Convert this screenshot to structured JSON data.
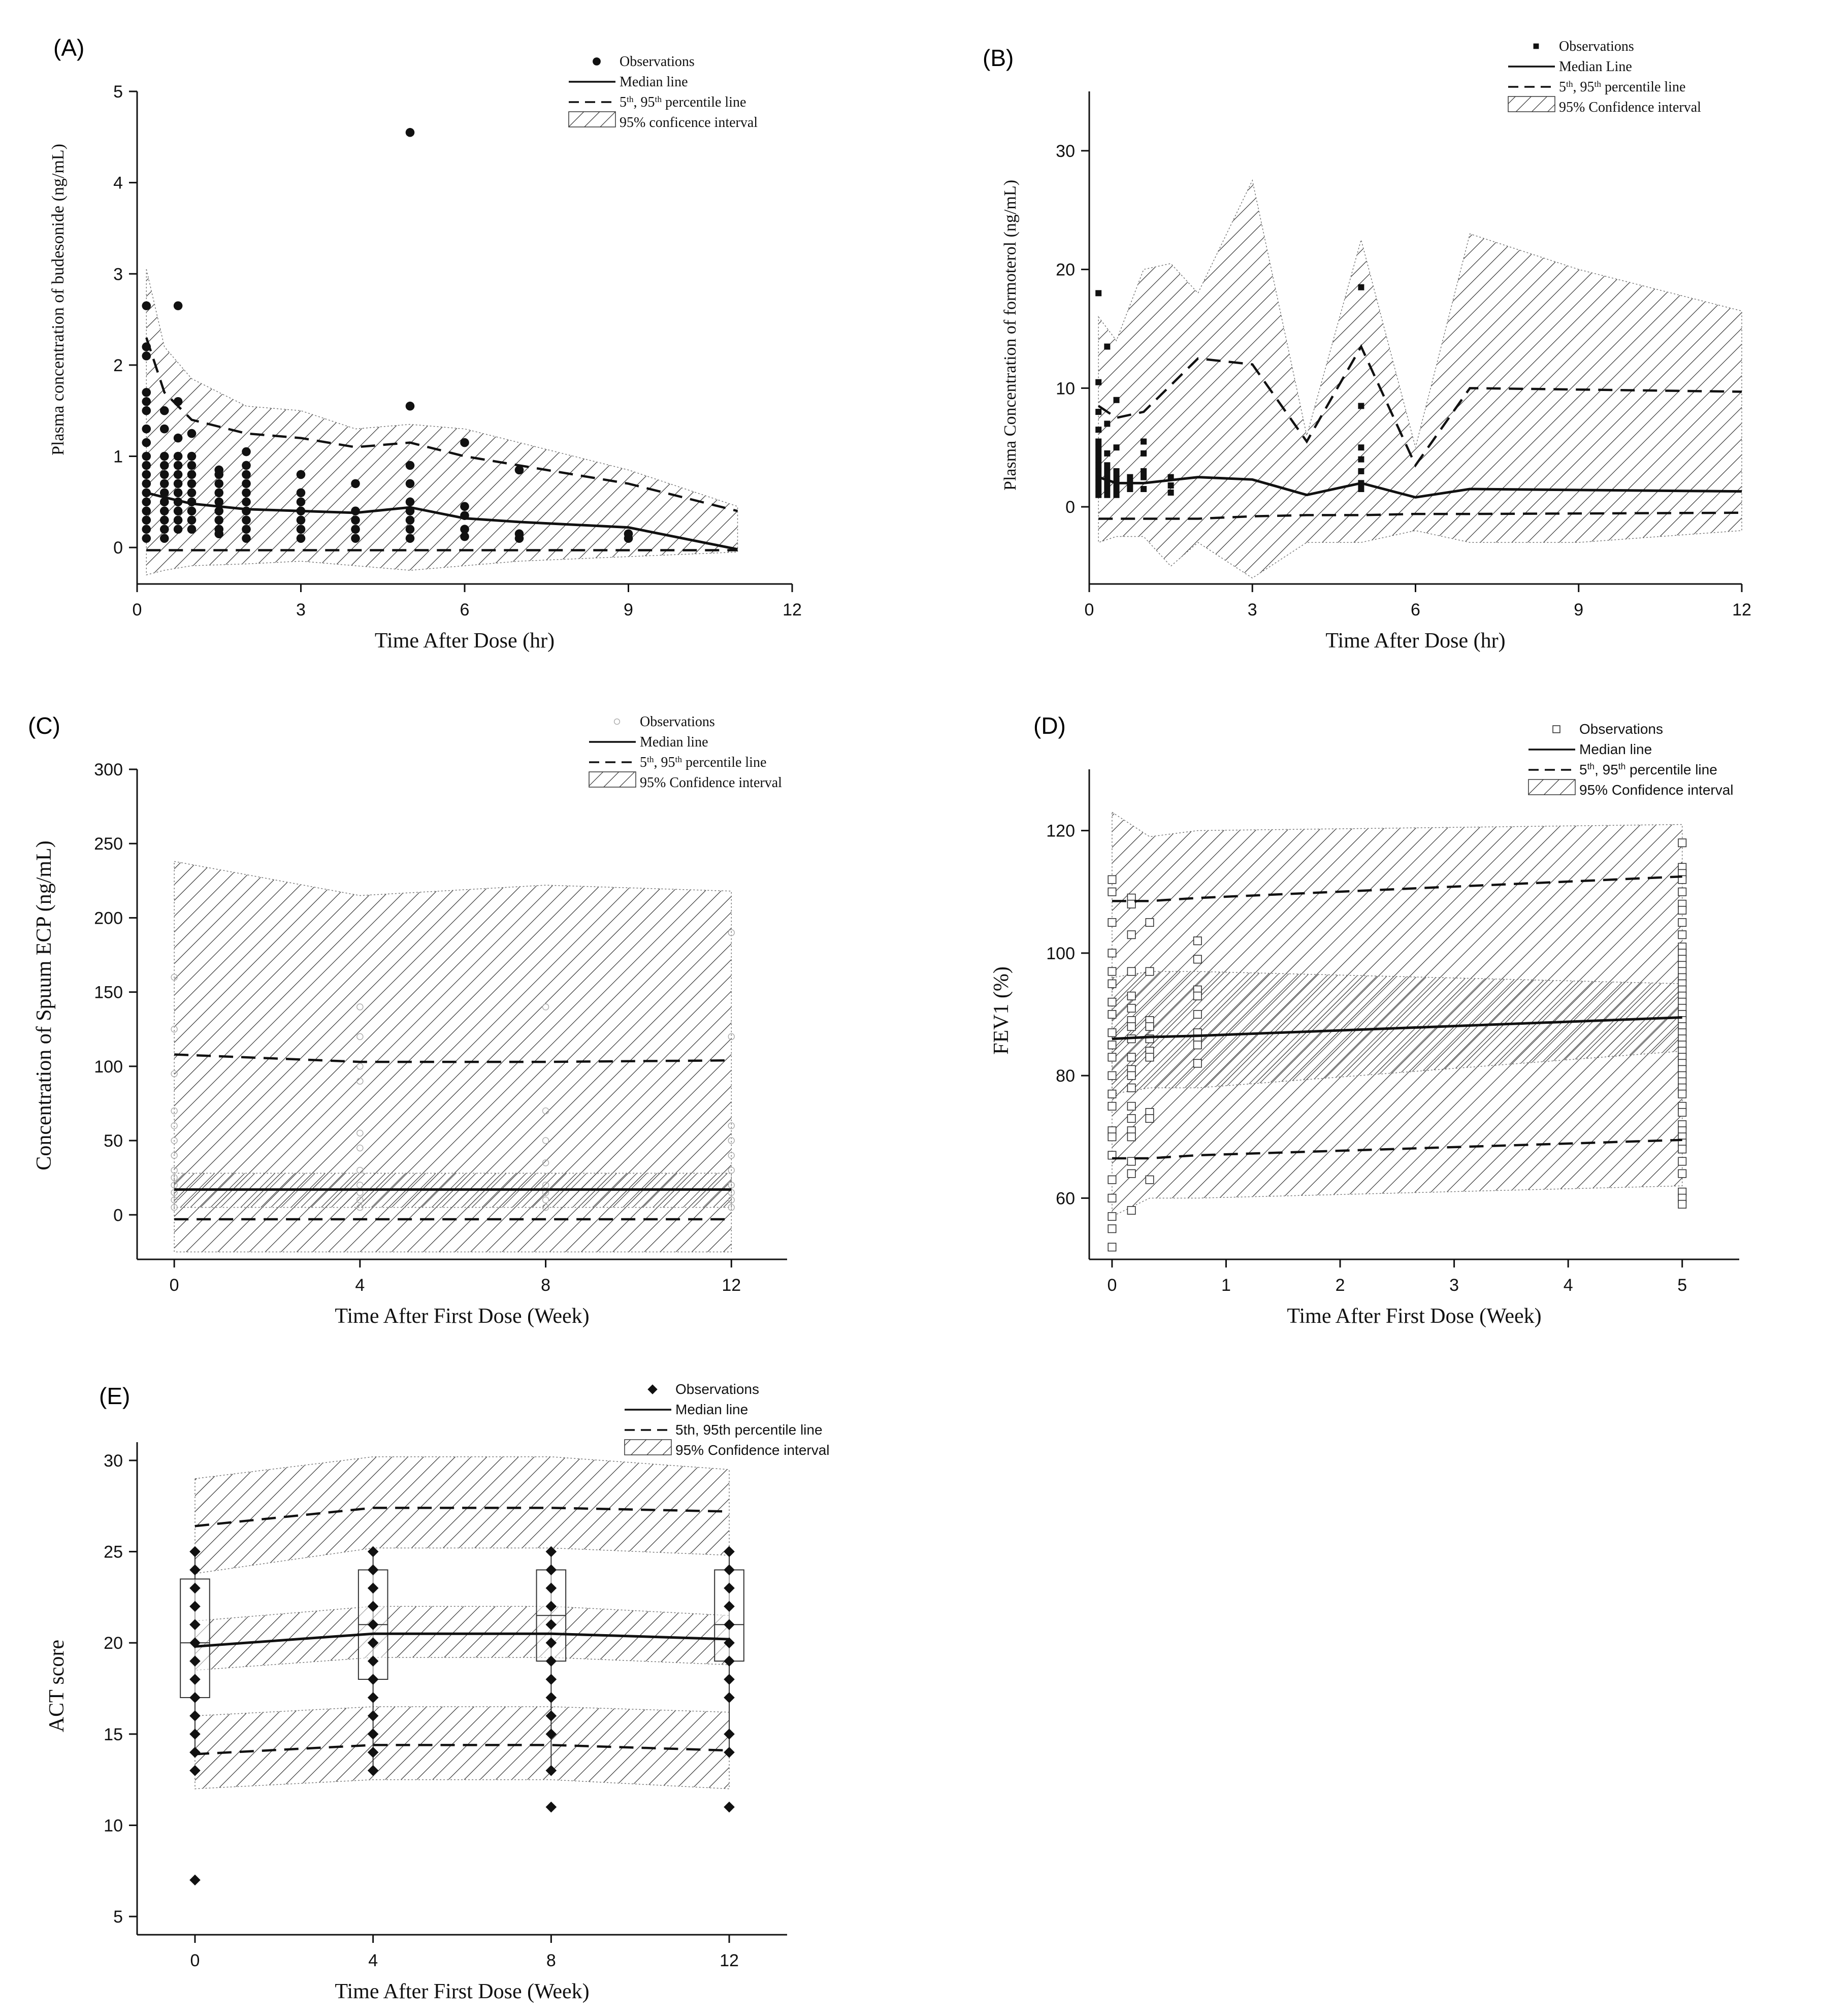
{
  "figure": {
    "title": "Visual predictive check panels (A)-(E)"
  },
  "chart_data": [
    {
      "id": "A",
      "type": "scatter",
      "panel_label": "(A)",
      "xlabel": "Time After Dose (hr)",
      "ylabel": "Plasma concentration of budesonide (ng/mL)",
      "xlim": [
        0,
        12
      ],
      "ylim": [
        -0.4,
        5
      ],
      "xticks": [
        0,
        3,
        6,
        9,
        12
      ],
      "yticks": [
        0,
        1,
        2,
        3,
        4,
        5
      ],
      "font": "serif",
      "legend": {
        "position": "top-right",
        "entries": [
          "Observations",
          "Median line",
          "5th, 95th percentile line",
          "95% conficence interval"
        ],
        "marker": "dot"
      },
      "ci_band": {
        "x": [
          0.17,
          0.5,
          1,
          2,
          3,
          4,
          5,
          6,
          7,
          9,
          11
        ],
        "lo": [
          -0.3,
          -0.25,
          -0.2,
          -0.18,
          -0.15,
          -0.2,
          -0.25,
          -0.2,
          -0.15,
          -0.1,
          -0.05
        ],
        "hi": [
          3.05,
          2.2,
          1.85,
          1.55,
          1.5,
          1.3,
          1.35,
          1.3,
          1.15,
          0.85,
          0.45
        ]
      },
      "p95": {
        "x": [
          0.17,
          0.5,
          1,
          2,
          3,
          4,
          5,
          6,
          7,
          9,
          11
        ],
        "y": [
          2.3,
          1.7,
          1.4,
          1.25,
          1.2,
          1.1,
          1.15,
          1.0,
          0.9,
          0.7,
          0.4
        ]
      },
      "median": {
        "x": [
          0.17,
          0.5,
          1,
          2,
          3,
          4,
          5,
          6,
          7,
          9,
          11
        ],
        "y": [
          0.6,
          0.55,
          0.48,
          0.42,
          0.4,
          0.38,
          0.44,
          0.32,
          0.28,
          0.22,
          -0.02
        ]
      },
      "p5": {
        "x": [
          0.17,
          11
        ],
        "y": [
          -0.03,
          -0.03
        ]
      },
      "observations": [
        {
          "x": 0.17,
          "y": [
            2.65,
            2.2,
            2.1,
            1.7,
            1.6,
            1.5,
            1.3,
            1.15,
            1.0,
            0.9,
            0.8,
            0.7,
            0.6,
            0.5,
            0.4,
            0.3,
            0.2,
            0.1
          ]
        },
        {
          "x": 0.5,
          "y": [
            1.5,
            1.3,
            1.0,
            0.9,
            0.8,
            0.7,
            0.6,
            0.5,
            0.4,
            0.3,
            0.2,
            0.1
          ]
        },
        {
          "x": 0.75,
          "y": [
            2.65,
            1.6,
            1.2,
            1.0,
            0.9,
            0.8,
            0.7,
            0.6,
            0.5,
            0.4,
            0.3,
            0.2
          ]
        },
        {
          "x": 1,
          "y": [
            1.25,
            1.0,
            0.9,
            0.8,
            0.7,
            0.6,
            0.5,
            0.4,
            0.3,
            0.2
          ]
        },
        {
          "x": 1.5,
          "y": [
            0.85,
            0.8,
            0.7,
            0.6,
            0.5,
            0.4,
            0.3,
            0.2,
            0.15
          ]
        },
        {
          "x": 2,
          "y": [
            1.05,
            0.9,
            0.8,
            0.7,
            0.6,
            0.5,
            0.4,
            0.3,
            0.2,
            0.1
          ]
        },
        {
          "x": 3,
          "y": [
            0.8,
            0.6,
            0.5,
            0.4,
            0.3,
            0.2,
            0.1
          ]
        },
        {
          "x": 4,
          "y": [
            0.7,
            0.4,
            0.3,
            0.2,
            0.1
          ]
        },
        {
          "x": 5,
          "y": [
            4.55,
            1.55,
            0.9,
            0.7,
            0.5,
            0.4,
            0.3,
            0.2,
            0.1
          ]
        },
        {
          "x": 6,
          "y": [
            1.15,
            0.45,
            0.35,
            0.2,
            0.12
          ]
        },
        {
          "x": 7,
          "y": [
            0.85,
            0.15,
            0.1
          ]
        },
        {
          "x": 9,
          "y": [
            0.15,
            0.1
          ]
        }
      ]
    },
    {
      "id": "B",
      "type": "scatter",
      "panel_label": "(B)",
      "xlabel": "Time After Dose (hr)",
      "ylabel": "Plasma Concentration of formoterol (ng/mL)",
      "xlim": [
        0,
        12
      ],
      "ylim": [
        -6.5,
        35
      ],
      "xticks": [
        0,
        3,
        6,
        9,
        12
      ],
      "yticks": [
        0,
        10,
        20,
        30
      ],
      "font": "serif",
      "legend": {
        "position": "top-right",
        "entries": [
          "Observations",
          "Median Line",
          "5th, 95th percentile line",
          "95% Confidence interval"
        ],
        "marker": "square"
      },
      "ci_band": {
        "x": [
          0.17,
          0.5,
          1,
          1.5,
          2,
          3,
          4,
          5,
          6,
          7,
          9,
          12
        ],
        "lo": [
          -3,
          -2.5,
          -2.5,
          -5,
          -3,
          -6,
          -3,
          -3,
          -2,
          -3,
          -3,
          -2
        ],
        "hi": [
          16,
          14,
          20,
          20.5,
          18,
          27.5,
          6,
          22.5,
          5,
          23,
          20,
          16.5
        ]
      },
      "p95": {
        "x": [
          0.17,
          0.5,
          1,
          2,
          3,
          4,
          5,
          6,
          7,
          12
        ],
        "y": [
          8.5,
          7.5,
          8,
          12.5,
          12,
          5.5,
          13.5,
          3.5,
          10,
          9.7
        ]
      },
      "median": {
        "x": [
          0.17,
          0.5,
          1,
          2,
          3,
          4,
          5,
          6,
          7,
          12
        ],
        "y": [
          2.5,
          2,
          2,
          2.5,
          2.3,
          1,
          2,
          0.8,
          1.5,
          1.3
        ]
      },
      "p5": {
        "x": [
          0.17,
          0.5,
          1,
          2,
          3,
          4,
          5,
          6,
          7,
          12
        ],
        "y": [
          -1,
          -1,
          -1,
          -1,
          -0.8,
          -0.7,
          -0.7,
          -0.6,
          -0.6,
          -0.5
        ]
      },
      "observations": [
        {
          "x": 0.17,
          "y": [
            18,
            10.5,
            8,
            6.5,
            5.5,
            5,
            4.5,
            4,
            3.5,
            3,
            2.5,
            2,
            1.5,
            1
          ]
        },
        {
          "x": 0.33,
          "y": [
            13.5,
            7,
            4.5,
            3.5,
            3,
            2.5,
            2,
            1.5,
            1
          ]
        },
        {
          "x": 0.5,
          "y": [
            9,
            5,
            3,
            2.5,
            2,
            1.5,
            1
          ]
        },
        {
          "x": 0.75,
          "y": [
            2.5,
            2,
            1.5
          ]
        },
        {
          "x": 1,
          "y": [
            5.5,
            4.5,
            3,
            2.5,
            1.5
          ]
        },
        {
          "x": 1.5,
          "y": [
            2.5,
            1.8,
            1.2
          ]
        },
        {
          "x": 5,
          "y": [
            18.5,
            8.5,
            5,
            4,
            3,
            2,
            1.5
          ]
        }
      ]
    },
    {
      "id": "C",
      "type": "scatter",
      "panel_label": "(C)",
      "xlabel": "Time After First Dose (Week)",
      "ylabel": "Concentration of Spuum ECP (ng/mL)",
      "xlim": [
        -0.8,
        13.2
      ],
      "ylim": [
        -30,
        300
      ],
      "xticks": [
        0,
        4,
        8,
        12
      ],
      "yticks": [
        0,
        50,
        100,
        150,
        200,
        250,
        300
      ],
      "font": "serif",
      "legend": {
        "position": "top-right",
        "entries": [
          "Observations",
          "Median line",
          "5th, 95th percentile line",
          "95% Confidence interval"
        ],
        "marker": "circle"
      },
      "ci_band": {
        "x": [
          0,
          4,
          8,
          12
        ],
        "lo": [
          -25,
          -25,
          -25,
          -25
        ],
        "hi": [
          238,
          215,
          222,
          218
        ]
      },
      "inner_band": {
        "x": [
          0,
          4,
          8,
          12
        ],
        "lo": [
          5,
          5,
          5,
          5
        ],
        "hi": [
          28,
          28,
          28,
          28
        ]
      },
      "p95": {
        "x": [
          0,
          4,
          8,
          12
        ],
        "y": [
          108,
          103,
          103,
          104
        ]
      },
      "median": {
        "x": [
          0,
          12
        ],
        "y": [
          17,
          17
        ]
      },
      "p5": {
        "x": [
          0,
          12
        ],
        "y": [
          -3,
          -3
        ]
      },
      "observations": [
        {
          "x": 0,
          "y": [
            160,
            125,
            95,
            70,
            60,
            50,
            40,
            30,
            25,
            20,
            15,
            10,
            5
          ]
        },
        {
          "x": 4,
          "y": [
            140,
            120,
            100,
            90,
            55,
            45,
            30,
            20,
            15,
            10,
            5
          ]
        },
        {
          "x": 8,
          "y": [
            140,
            70,
            50,
            35,
            20,
            15,
            10,
            5
          ]
        },
        {
          "x": 12,
          "y": [
            190,
            120,
            60,
            50,
            40,
            30,
            20,
            15,
            10,
            5
          ]
        }
      ]
    },
    {
      "id": "D",
      "type": "scatter",
      "panel_label": "(D)",
      "xlabel": "Time After First Dose (Week)",
      "ylabel": "FEV1 (%)",
      "xlim": [
        -0.2,
        5.5
      ],
      "ylim": [
        50,
        130
      ],
      "xticks": [
        0,
        1,
        2,
        3,
        4,
        5
      ],
      "yticks": [
        60,
        80,
        100,
        120
      ],
      "font": "sans",
      "legend": {
        "position": "top-right",
        "entries": [
          "Observations",
          "Median line",
          "5th, 95th percentile line",
          "95% Confidence interval"
        ],
        "marker": "square-open"
      },
      "ci_band": {
        "x": [
          0,
          0.33,
          0.75,
          5
        ],
        "lo": [
          57,
          60,
          60,
          62
        ],
        "hi": [
          123,
          119,
          120,
          121
        ]
      },
      "inner_band": {
        "x": [
          0,
          0.33,
          0.75,
          5
        ],
        "lo": [
          77,
          78,
          78,
          84
        ],
        "hi": [
          96,
          97,
          97,
          95
        ]
      },
      "p95": {
        "x": [
          0,
          0.33,
          0.75,
          5
        ],
        "y": [
          108.5,
          108.5,
          109,
          112.5
        ]
      },
      "median": {
        "x": [
          0,
          0.33,
          0.75,
          5
        ],
        "y": [
          86,
          86.3,
          86.5,
          89.5
        ]
      },
      "p5": {
        "x": [
          0,
          0.33,
          0.75,
          5
        ],
        "y": [
          66.5,
          66.5,
          67,
          69.5
        ]
      },
      "observations": [
        {
          "x": 0,
          "y": [
            112,
            110,
            105,
            100,
            97,
            95,
            92,
            90,
            87,
            85,
            83,
            80,
            77,
            75,
            71,
            70,
            67,
            63,
            60,
            57,
            55,
            52
          ]
        },
        {
          "x": 0.17,
          "y": [
            109,
            108,
            103,
            97,
            93,
            91,
            89,
            88,
            86,
            83,
            81,
            80,
            78,
            75,
            73,
            71,
            70,
            66,
            64,
            58
          ]
        },
        {
          "x": 0.33,
          "y": [
            105,
            97,
            89,
            88,
            86,
            84,
            83,
            74,
            73,
            63
          ]
        },
        {
          "x": 0.75,
          "y": [
            102,
            99,
            94,
            93,
            90,
            87,
            86,
            85,
            82
          ]
        },
        {
          "x": 5,
          "y": [
            118,
            114,
            113,
            112,
            110,
            108,
            107,
            105,
            103,
            101,
            100,
            99,
            98,
            97,
            96,
            95,
            94,
            93,
            92,
            91,
            90,
            89,
            88,
            87,
            86,
            85,
            84,
            83,
            82,
            81,
            80,
            79,
            78,
            77,
            75,
            74,
            72,
            71,
            70,
            69,
            68,
            66,
            64,
            61,
            60,
            59
          ]
        }
      ]
    },
    {
      "id": "E",
      "type": "scatter",
      "panel_label": "(E)",
      "xlabel": "Time After First Dose (Week)",
      "ylabel": "ACT score",
      "xlim": [
        -1.3,
        13.3
      ],
      "ylim": [
        4,
        31
      ],
      "xticks": [
        0,
        4,
        8,
        12
      ],
      "yticks": [
        5,
        10,
        15,
        20,
        25,
        30
      ],
      "font": "sans",
      "legend": {
        "position": "top-right",
        "entries": [
          "Observations",
          "Median line",
          "5th, 95th percentile line",
          "95% Confidence interval"
        ],
        "marker": "diamond"
      },
      "ci_band": {
        "x": [
          0,
          4,
          8,
          12
        ],
        "lo": [
          12,
          12.5,
          12.5,
          12
        ],
        "hi": [
          29,
          30.2,
          30.2,
          29.5
        ]
      },
      "band_95": {
        "x": [
          0,
          4,
          8,
          12
        ],
        "lo": [
          23.8,
          25.2,
          25.2,
          24.8
        ],
        "hi": [
          29,
          30.2,
          30.2,
          29.5
        ]
      },
      "band_med": {
        "x": [
          0,
          4,
          8,
          12
        ],
        "lo": [
          18.5,
          19.2,
          19.2,
          18.8
        ],
        "hi": [
          21.2,
          22,
          22,
          21.5
        ]
      },
      "band_5": {
        "x": [
          0,
          4,
          8,
          12
        ],
        "lo": [
          12,
          12.5,
          12.5,
          12
        ],
        "hi": [
          16,
          16.5,
          16.5,
          16.2
        ]
      },
      "p95": {
        "x": [
          0,
          4,
          8,
          12
        ],
        "y": [
          26.4,
          27.4,
          27.4,
          27.2
        ]
      },
      "median": {
        "x": [
          0,
          4,
          8,
          12
        ],
        "y": [
          19.8,
          20.5,
          20.5,
          20.2
        ]
      },
      "p5": {
        "x": [
          0,
          4,
          8,
          12
        ],
        "y": [
          13.9,
          14.4,
          14.4,
          14.1
        ]
      },
      "boxes": [
        {
          "x": 0,
          "q1": 17,
          "median": 20,
          "q3": 23.5,
          "lo": 14,
          "hi": 25
        },
        {
          "x": 4,
          "q1": 18,
          "median": 21,
          "q3": 24,
          "lo": 13,
          "hi": 25
        },
        {
          "x": 8,
          "q1": 19,
          "median": 21.5,
          "q3": 24,
          "lo": 13,
          "hi": 25
        },
        {
          "x": 12,
          "q1": 19,
          "median": 21,
          "q3": 24,
          "lo": 14,
          "hi": 25
        }
      ],
      "observations": [
        {
          "x": 0,
          "y": [
            25,
            24,
            23,
            22,
            21,
            20,
            19,
            18,
            17,
            16,
            15,
            14,
            13,
            7
          ]
        },
        {
          "x": 4,
          "y": [
            25,
            24,
            23,
            22,
            21,
            20,
            19,
            18,
            17,
            16,
            15,
            14,
            13
          ]
        },
        {
          "x": 8,
          "y": [
            25,
            24,
            23,
            22,
            21,
            20,
            19,
            18,
            17,
            16,
            15,
            13,
            11
          ]
        },
        {
          "x": 12,
          "y": [
            25,
            24,
            23,
            22,
            21,
            20,
            19,
            18,
            17,
            15,
            14,
            11
          ]
        }
      ]
    }
  ]
}
